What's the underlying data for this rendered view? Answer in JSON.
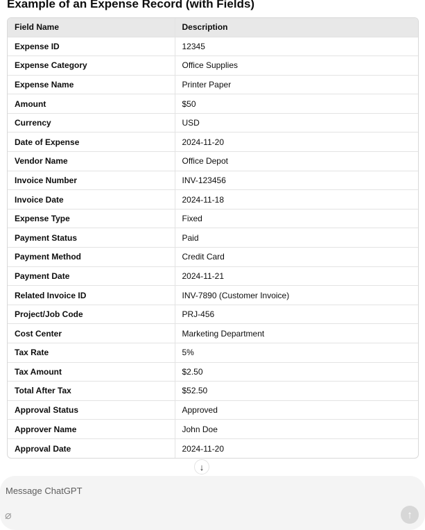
{
  "title": "Example of an Expense Record (with Fields)",
  "table": {
    "headers": [
      "Field Name",
      "Description"
    ],
    "rows": [
      [
        "Expense ID",
        "12345"
      ],
      [
        "Expense Category",
        "Office Supplies"
      ],
      [
        "Expense Name",
        "Printer Paper"
      ],
      [
        "Amount",
        "$50"
      ],
      [
        "Currency",
        "USD"
      ],
      [
        "Date of Expense",
        "2024-11-20"
      ],
      [
        "Vendor Name",
        "Office Depot"
      ],
      [
        "Invoice Number",
        "INV-123456"
      ],
      [
        "Invoice Date",
        "2024-11-18"
      ],
      [
        "Expense Type",
        "Fixed"
      ],
      [
        "Payment Status",
        "Paid"
      ],
      [
        "Payment Method",
        "Credit Card"
      ],
      [
        "Payment Date",
        "2024-11-21"
      ],
      [
        "Related Invoice ID",
        "INV-7890 (Customer Invoice)"
      ],
      [
        "Project/Job Code",
        "PRJ-456"
      ],
      [
        "Cost Center",
        "Marketing Department"
      ],
      [
        "Tax Rate",
        "5%"
      ],
      [
        "Tax Amount",
        "$2.50"
      ],
      [
        "Total After Tax",
        "$52.50"
      ],
      [
        "Approval Status",
        "Approved"
      ],
      [
        "Approver Name",
        "John Doe"
      ],
      [
        "Approval Date",
        "2024-11-20"
      ]
    ]
  },
  "composer": {
    "placeholder": "Message ChatGPT",
    "attach_icon": "paperclip-icon",
    "send_icon": "arrow-up-icon"
  },
  "scroll_button": {
    "icon": "arrow-down-icon"
  }
}
